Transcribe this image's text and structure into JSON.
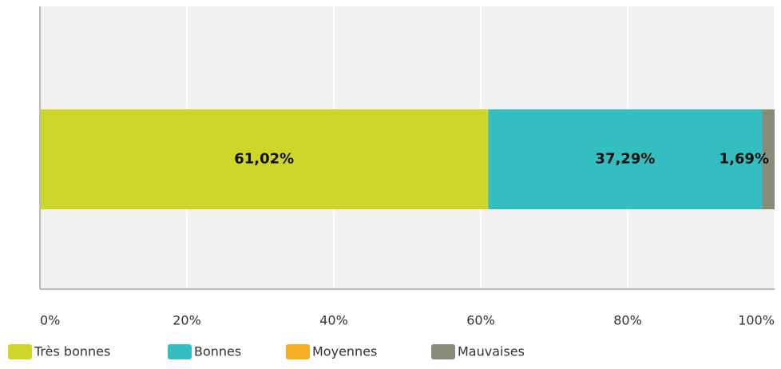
{
  "chart_data": {
    "type": "stacked-bar-horizontal",
    "categories": [
      null
    ],
    "series": [
      {
        "name": "Très bonnes",
        "color": "#cfd62a",
        "values": [
          61.02
        ],
        "value_labels": [
          "61,02%"
        ]
      },
      {
        "name": "Bonnes",
        "color": "#35bec1",
        "values": [
          37.29
        ],
        "value_labels": [
          "37,29%"
        ]
      },
      {
        "name": "Moyennes",
        "color": "#f6ae24",
        "values": [
          0
        ]
      },
      {
        "name": "Mauvaises",
        "color": "#8a8a78",
        "values": [
          1.69
        ],
        "value_labels": [
          "1,69%"
        ]
      }
    ],
    "xlim": [
      0,
      100
    ],
    "xticks": [
      {
        "value": 0,
        "label": "0%"
      },
      {
        "value": 20,
        "label": "20%"
      },
      {
        "value": 40,
        "label": "40%"
      },
      {
        "value": 60,
        "label": "60%"
      },
      {
        "value": 80,
        "label": "80%"
      },
      {
        "value": 100,
        "label": "100%"
      }
    ],
    "grid": true,
    "legend": "bottom-left"
  }
}
